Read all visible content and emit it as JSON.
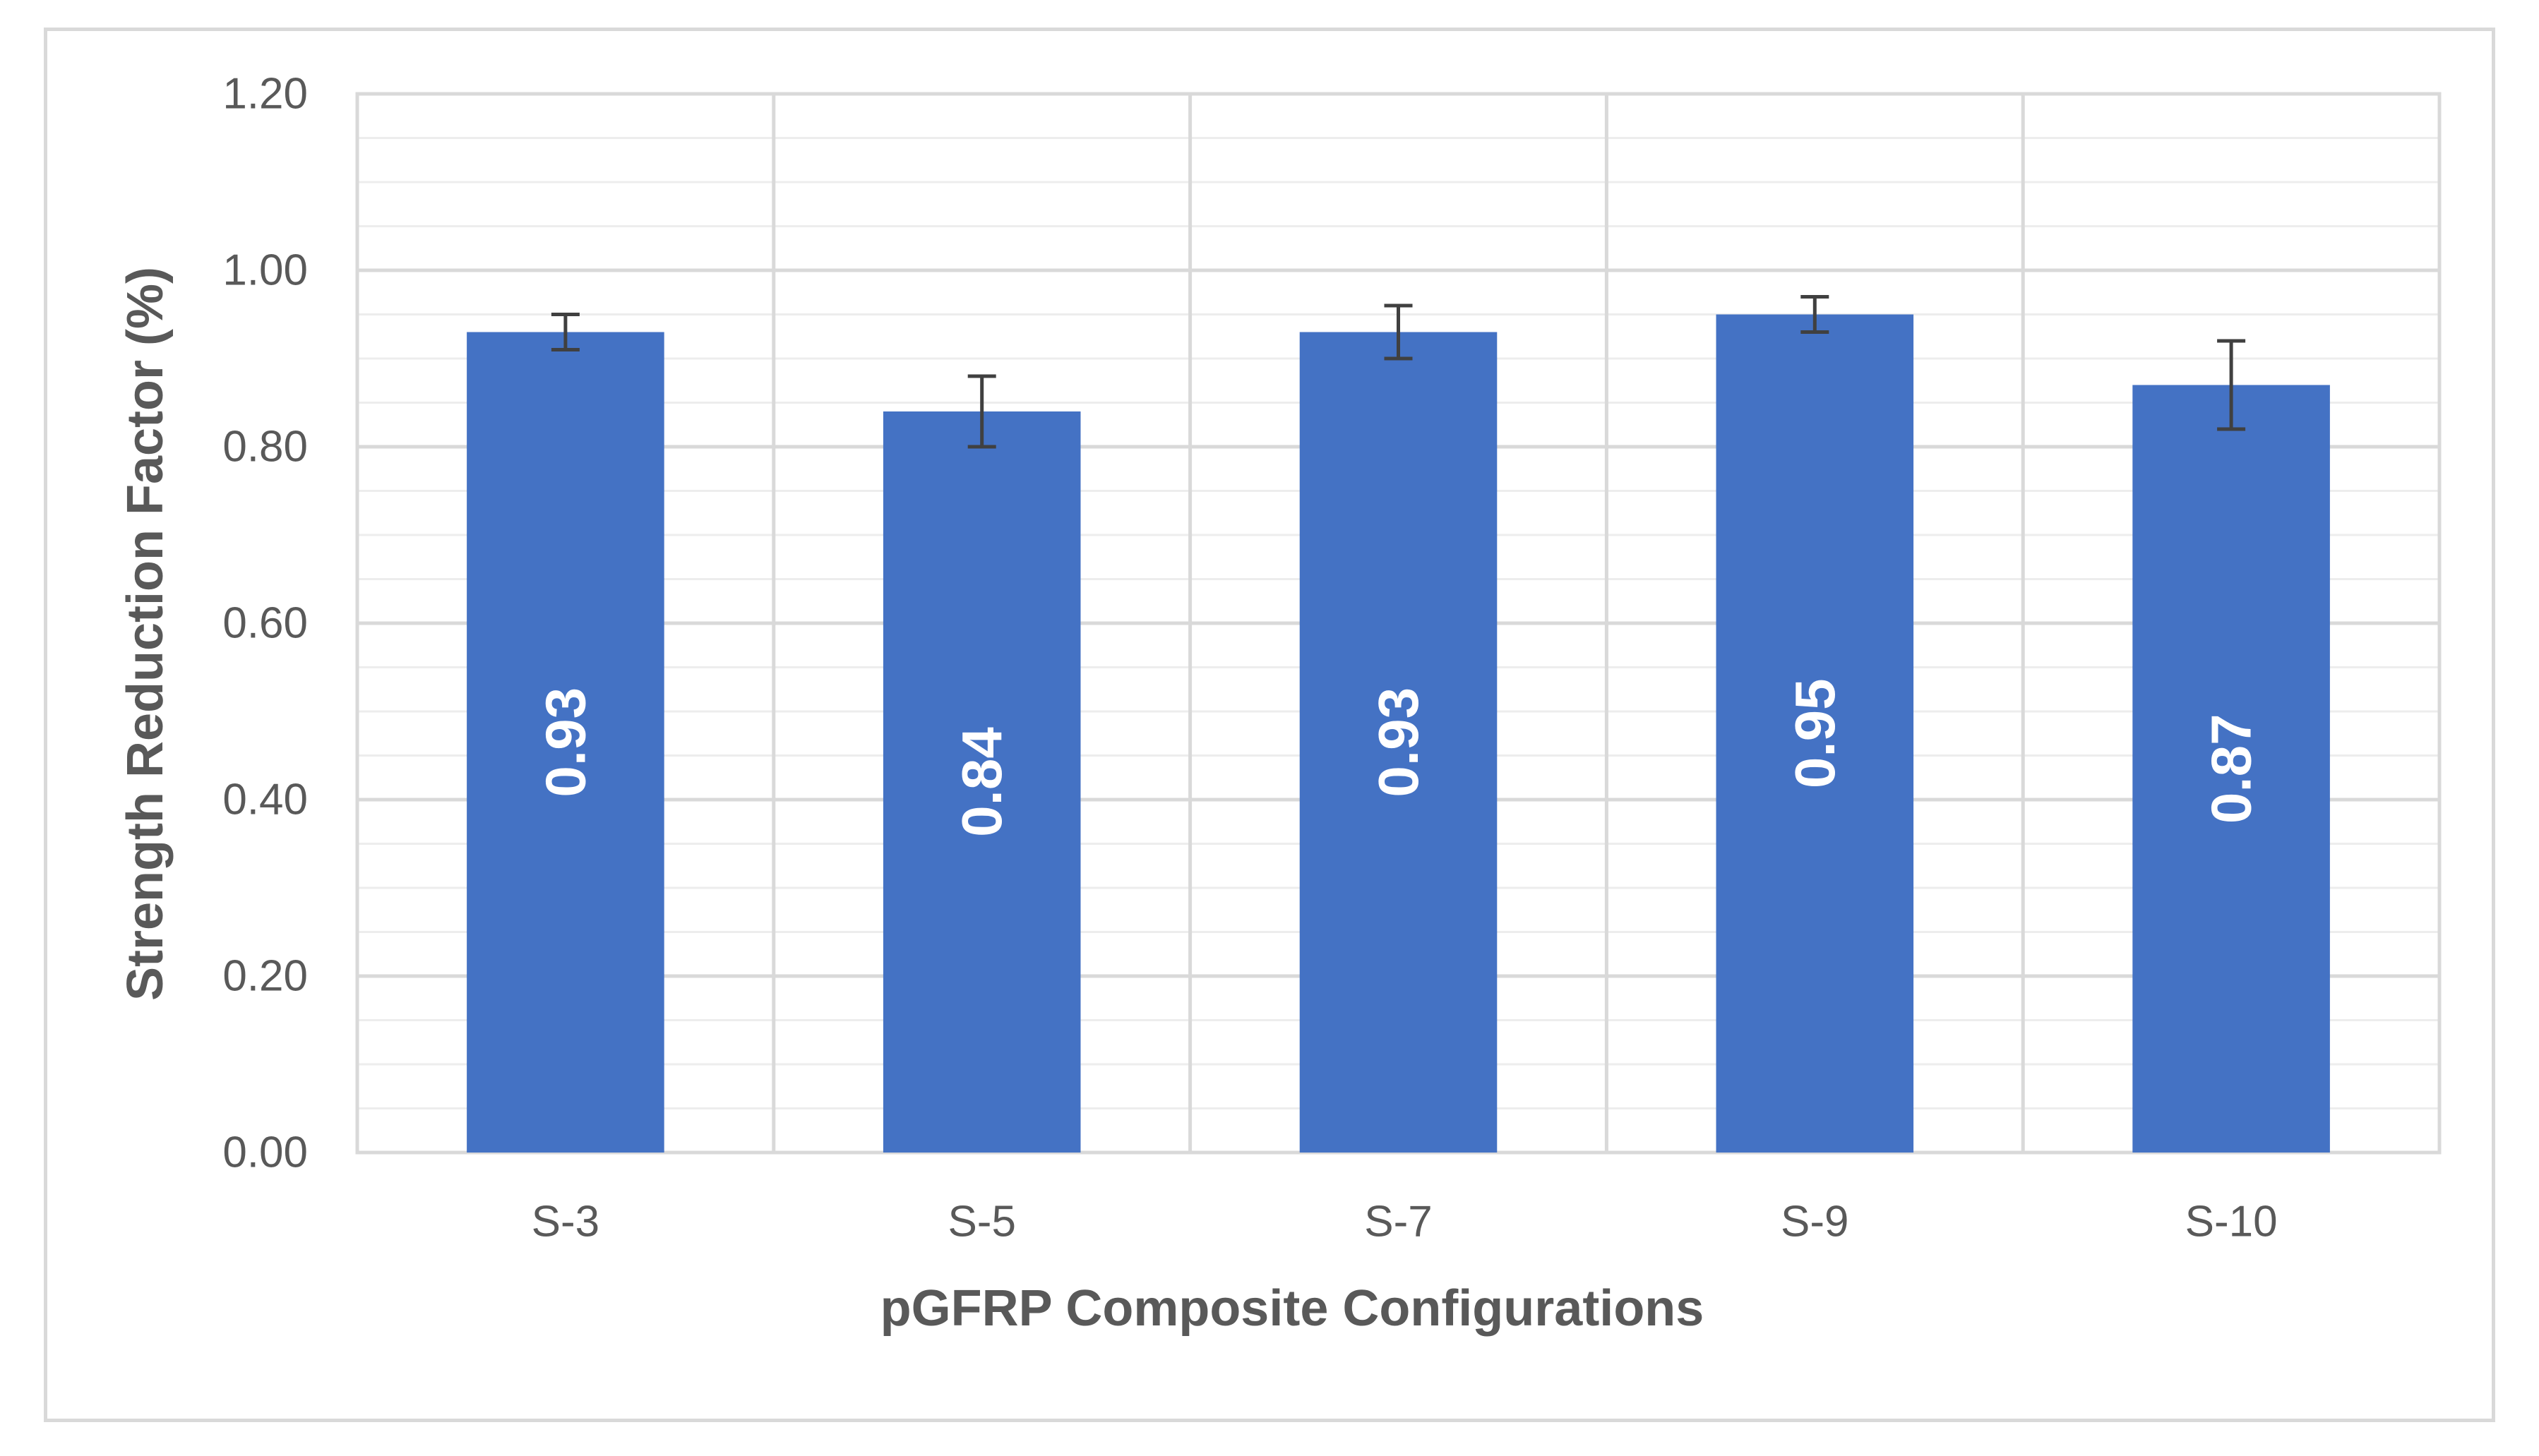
{
  "chart_data": {
    "type": "bar",
    "categories": [
      "S-3",
      "S-5",
      "S-7",
      "S-9",
      "S-10"
    ],
    "values": [
      0.93,
      0.84,
      0.93,
      0.95,
      0.87
    ],
    "error": [
      0.02,
      0.04,
      0.03,
      0.02,
      0.05
    ],
    "value_labels": [
      "0.93",
      "0.84",
      "0.93",
      "0.95",
      "0.87"
    ],
    "xlabel": "pGFRP Composite Configurations",
    "ylabel": "Strength Reduction Factor (%)",
    "ylim": [
      0,
      1.2
    ],
    "yticks": [
      "0.00",
      "0.20",
      "0.40",
      "0.60",
      "0.80",
      "1.00",
      "1.20"
    ],
    "grid": true,
    "minor_grid": true,
    "bar_color": "#4472c4",
    "error_color": "#404040",
    "grid_color": "#d9d9d9",
    "minor_grid_color": "#ededed"
  }
}
